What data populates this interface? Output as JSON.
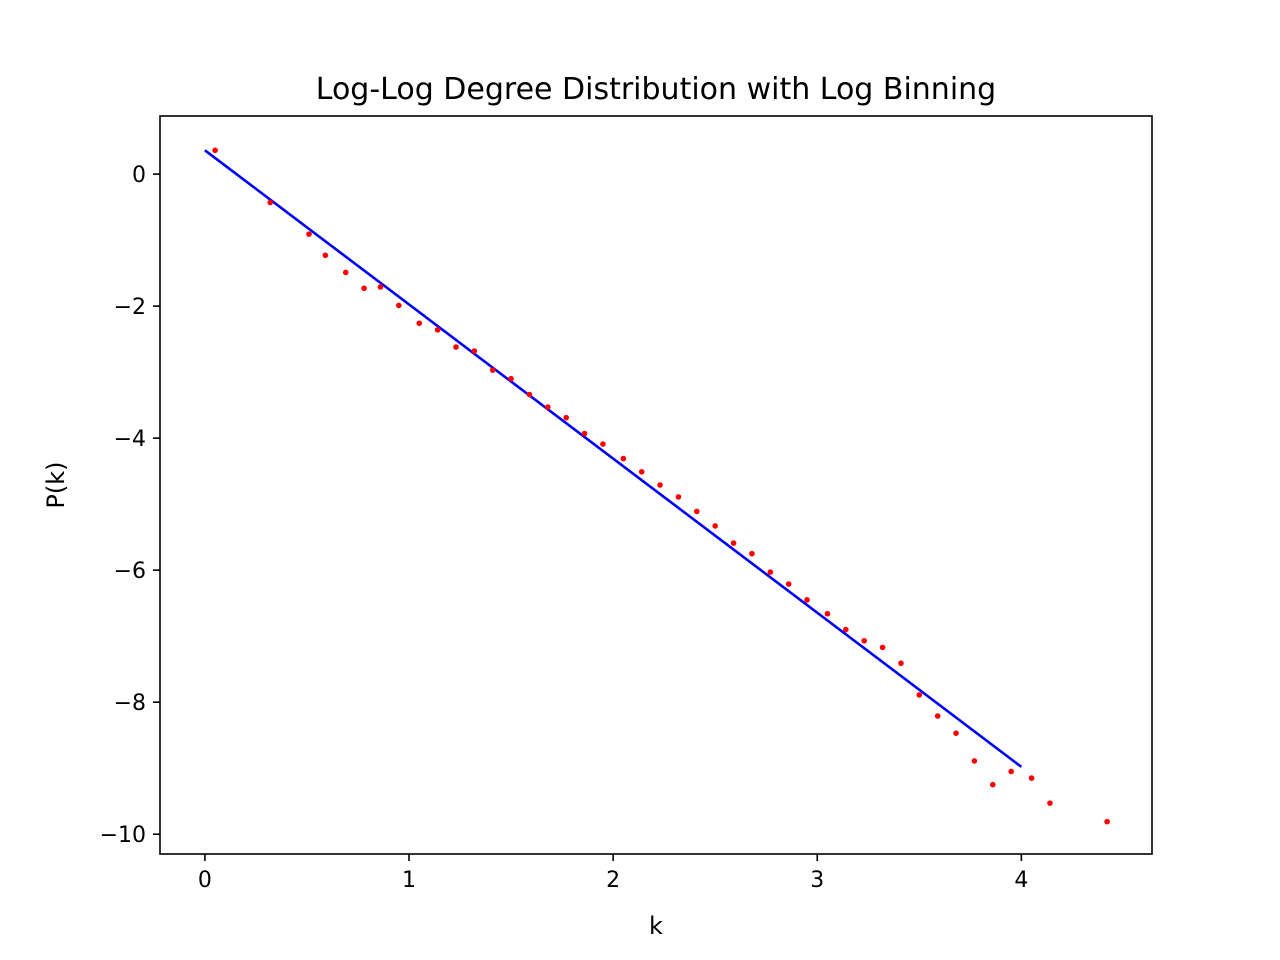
{
  "chart_data": {
    "type": "scatter",
    "title": "Log-Log Degree Distribution with Log Binning",
    "xlabel": "k",
    "ylabel": "P(k)",
    "xlim": [
      -0.22,
      4.64
    ],
    "ylim": [
      -10.3,
      0.88
    ],
    "xticks": [
      0,
      1,
      2,
      3,
      4
    ],
    "xtick_labels": [
      "0",
      "1",
      "2",
      "3",
      "4"
    ],
    "yticks": [
      0,
      -2,
      -4,
      -6,
      -8,
      -10
    ],
    "ytick_labels": [
      "0",
      "−2",
      "−4",
      "−6",
      "−8",
      "−10"
    ],
    "grid": false,
    "scatter": {
      "color": "#ff0000",
      "x": [
        0.05,
        0.32,
        0.51,
        0.59,
        0.69,
        0.78,
        0.86,
        0.95,
        1.05,
        1.14,
        1.23,
        1.32,
        1.41,
        1.5,
        1.59,
        1.68,
        1.77,
        1.86,
        1.95,
        2.05,
        2.14,
        2.23,
        2.32,
        2.41,
        2.5,
        2.59,
        2.68,
        2.77,
        2.86,
        2.95,
        3.05,
        3.14,
        3.23,
        3.32,
        3.41,
        3.5,
        3.59,
        3.68,
        3.77,
        3.86,
        3.95,
        4.05,
        4.14,
        4.42
      ],
      "y": [
        0.36,
        -0.43,
        -0.91,
        -1.23,
        -1.49,
        -1.73,
        -1.71,
        -1.99,
        -2.26,
        -2.36,
        -2.62,
        -2.68,
        -2.97,
        -3.1,
        -3.34,
        -3.53,
        -3.69,
        -3.93,
        -4.09,
        -4.31,
        -4.51,
        -4.71,
        -4.89,
        -5.11,
        -5.33,
        -5.59,
        -5.75,
        -6.03,
        -6.21,
        -6.45,
        -6.66,
        -6.9,
        -7.07,
        -7.17,
        -7.41,
        -7.89,
        -8.21,
        -8.47,
        -8.89,
        -9.25,
        -9.05,
        -9.15,
        -9.53,
        -9.81
      ]
    },
    "fit_line": {
      "color": "#0000ff",
      "x": [
        0,
        4
      ],
      "y": [
        0.36,
        -8.98
      ]
    }
  }
}
